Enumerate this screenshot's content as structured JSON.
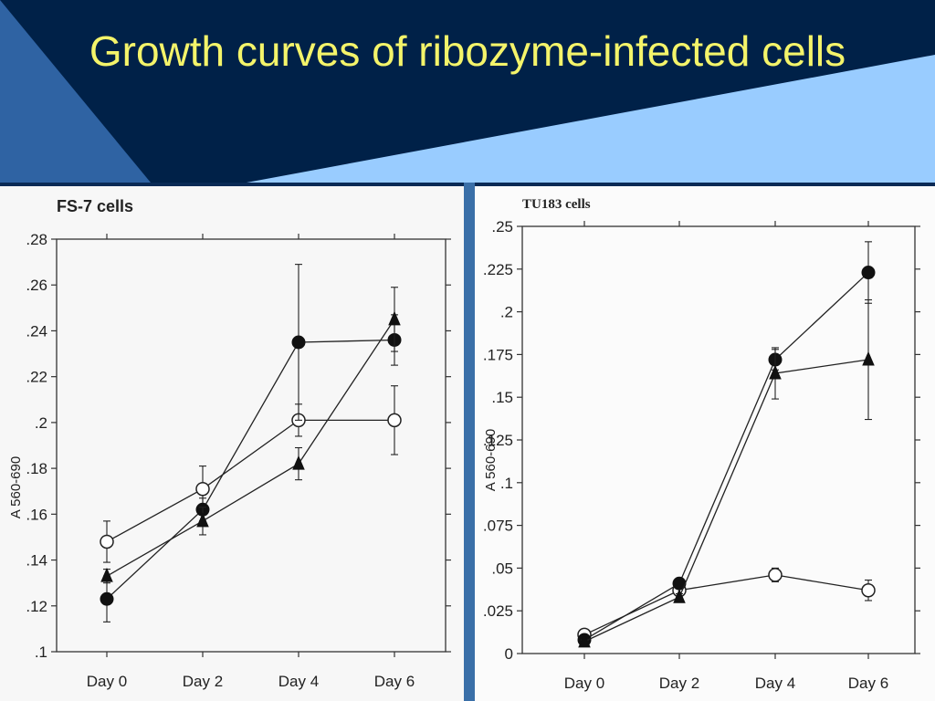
{
  "slide": {
    "title": "Growth curves of ribozyme-infected cells",
    "colors": {
      "banner_dark": "#002148",
      "banner_light": "#99ccff",
      "banner_mid": "#2f63a3",
      "title_text": "#f4f46a"
    }
  },
  "chart_data": [
    {
      "type": "line",
      "title": "FS-7 cells",
      "ylabel": "A 560-690",
      "xlabel": "",
      "categories": [
        "Day 0",
        "Day 2",
        "Day 4",
        "Day 6"
      ],
      "ylim": [
        0.1,
        0.28
      ],
      "yticks": [
        ".1",
        ".12",
        ".14",
        ".16",
        ".18",
        ".2",
        ".22",
        ".24",
        ".26",
        ".28"
      ],
      "grid": false,
      "series": [
        {
          "marker": "open-circle",
          "values": [
            0.148,
            0.171,
            0.201,
            0.201
          ],
          "errors": [
            0.009,
            0.01,
            0.007,
            0.015
          ]
        },
        {
          "marker": "filled-circle",
          "values": [
            0.123,
            0.162,
            0.235,
            0.236
          ],
          "errors": [
            0.01,
            0.005,
            0.034,
            0.011
          ]
        },
        {
          "marker": "filled-triangle",
          "values": [
            0.133,
            0.157,
            0.182,
            0.245
          ],
          "errors": [
            0.003,
            0.006,
            0.007,
            0.014
          ]
        }
      ]
    },
    {
      "type": "line",
      "title": "TU183 cells",
      "ylabel": "A 560-690",
      "xlabel": "",
      "categories": [
        "Day 0",
        "Day 2",
        "Day 4",
        "Day 6"
      ],
      "ylim": [
        0,
        0.25
      ],
      "yticks": [
        "0",
        ".025",
        ".05",
        ".075",
        ".1",
        ".125",
        ".15",
        ".175",
        ".2",
        ".225",
        ".25"
      ],
      "grid": false,
      "series": [
        {
          "marker": "open-circle",
          "values": [
            0.011,
            0.037,
            0.046,
            0.037
          ],
          "errors": [
            0.002,
            0.002,
            0.004,
            0.006
          ]
        },
        {
          "marker": "filled-circle",
          "values": [
            0.008,
            0.041,
            0.172,
            0.223
          ],
          "errors": [
            0.002,
            0.002,
            0.006,
            0.018
          ]
        },
        {
          "marker": "filled-triangle",
          "values": [
            0.007,
            0.033,
            0.164,
            0.172
          ],
          "errors": [
            0.001,
            0.002,
            0.015,
            0.035
          ]
        }
      ]
    }
  ]
}
